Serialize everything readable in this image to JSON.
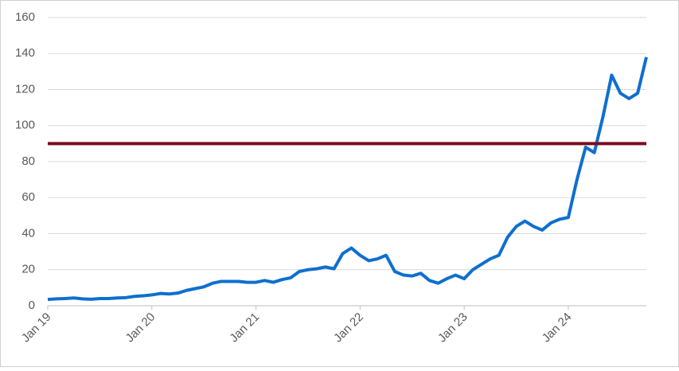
{
  "chart_data": {
    "type": "line",
    "categories": [
      "Jan 19",
      null,
      null,
      null,
      null,
      null,
      null,
      null,
      null,
      null,
      null,
      null,
      "Jan 20",
      null,
      null,
      null,
      null,
      null,
      null,
      null,
      null,
      null,
      null,
      null,
      "Jan 21",
      null,
      null,
      null,
      null,
      null,
      null,
      null,
      null,
      null,
      null,
      null,
      "Jan 22",
      null,
      null,
      null,
      null,
      null,
      null,
      null,
      null,
      null,
      null,
      null,
      "Jan 23",
      null,
      null,
      null,
      null,
      null,
      null,
      null,
      null,
      null,
      null,
      null,
      "Jan 24",
      null,
      null,
      null,
      null,
      null,
      null,
      null,
      null,
      null
    ],
    "series": [
      {
        "color": "#0e6fcf",
        "values": [
          3.5,
          3.8,
          4,
          4.3,
          3.8,
          3.6,
          4,
          4,
          4.3,
          4.5,
          5.2,
          5.5,
          6,
          6.8,
          6.5,
          7,
          8.5,
          9.5,
          10.5,
          12.5,
          13.5,
          13.5,
          13.5,
          13,
          13,
          14,
          13,
          14.5,
          15.5,
          19,
          20,
          20.5,
          21.5,
          20.5,
          29,
          32,
          28,
          25,
          26,
          28,
          19,
          17,
          16.5,
          18,
          14,
          12.5,
          15,
          17,
          15,
          20,
          23,
          26,
          28,
          38,
          44,
          47,
          44,
          42,
          46,
          48,
          49,
          70,
          88,
          85,
          105,
          128,
          118,
          115,
          118,
          138
        ]
      }
    ],
    "reference_line": 90,
    "reference_color": "#7b0c1e",
    "ylim": [
      0,
      160
    ],
    "yticks": [
      0,
      20,
      40,
      60,
      80,
      100,
      120,
      140,
      160
    ],
    "grid": true
  }
}
